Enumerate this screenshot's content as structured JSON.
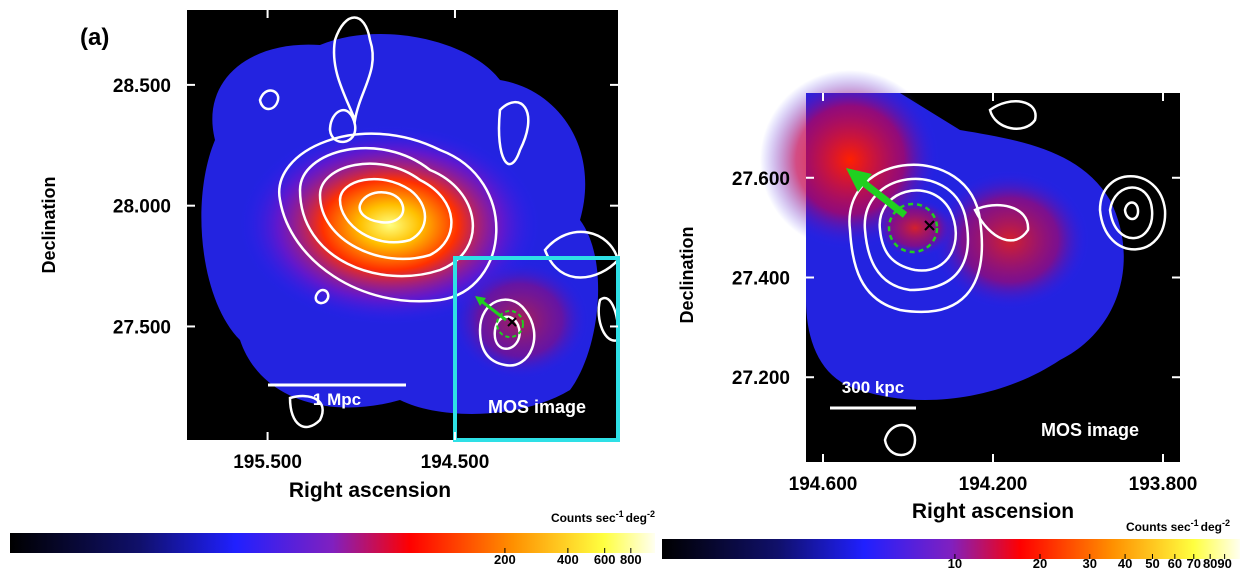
{
  "chart_data": [
    {
      "type": "image",
      "panel_label": "(a)",
      "x_label": "Right ascension",
      "y_label": "Declination",
      "xlim": [
        195.93,
        193.63
      ],
      "ylim": [
        27.03,
        28.81
      ],
      "xticks": [
        {
          "value": 195.5,
          "label": "195.500"
        },
        {
          "value": 194.5,
          "label": "194.500"
        }
      ],
      "yticks": [
        {
          "value": 27.5,
          "label": "27.500"
        },
        {
          "value": 28.0,
          "label": "28.000"
        },
        {
          "value": 28.5,
          "label": "28.500"
        }
      ],
      "scale_bar": "1 Mpc",
      "inset_label": "MOS image",
      "colorbar": {
        "label_parts": [
          "Counts sec",
          "-1",
          "deg",
          "-2"
        ],
        "log": true,
        "lim": [
          0.86,
          1044
        ],
        "ticks": [
          200,
          400,
          600,
          800
        ]
      }
    },
    {
      "type": "image",
      "x_label": "Right ascension",
      "y_label": "Declination",
      "xlim": [
        194.64,
        193.76
      ],
      "ylim": [
        27.03,
        27.77
      ],
      "xticks": [
        {
          "value": 194.6,
          "label": "194.600"
        },
        {
          "value": 194.2,
          "label": "194.200"
        },
        {
          "value": 193.8,
          "label": "193.800"
        }
      ],
      "yticks": [
        {
          "value": 27.2,
          "label": "27.200"
        },
        {
          "value": 27.4,
          "label": "27.400"
        },
        {
          "value": 27.6,
          "label": "27.600"
        }
      ],
      "scale_bar": "300 kpc",
      "inset_label": "MOS image",
      "colorbar": {
        "label_parts": [
          "Counts sec",
          "-1",
          "deg",
          "-2"
        ],
        "log": true,
        "lim": [
          0.92,
          102
        ],
        "ticks": [
          10,
          20,
          30,
          40,
          50,
          60,
          70,
          80,
          90
        ]
      }
    }
  ]
}
